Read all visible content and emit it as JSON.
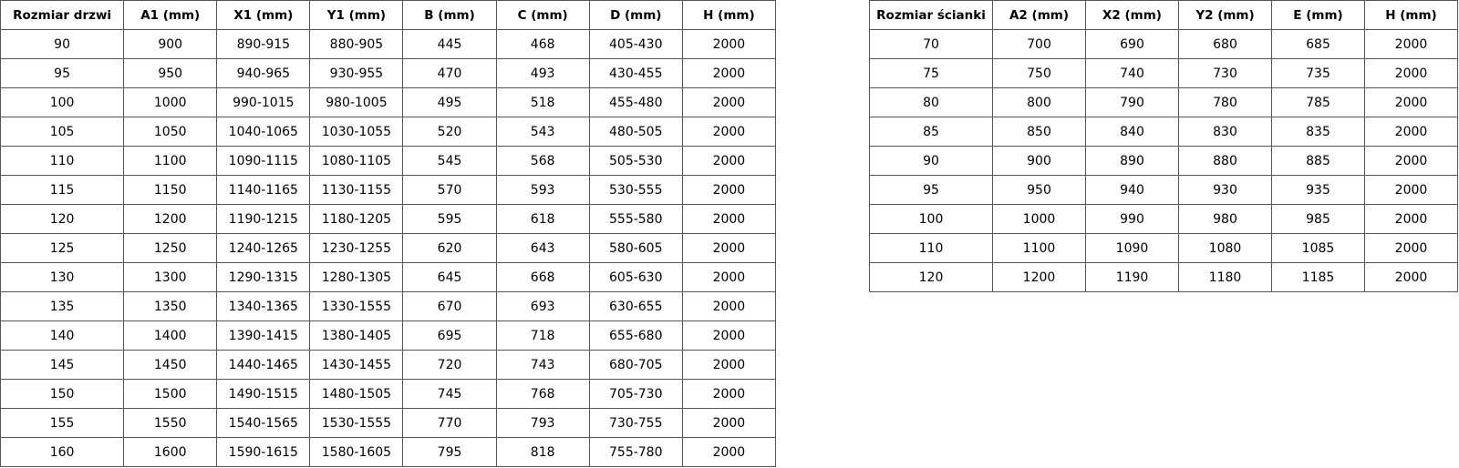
{
  "tables": [
    {
      "header": [
        "Rozmiar drzwi",
        "A1 (mm)",
        "X1 (mm)",
        "Y1 (mm)",
        "B (mm)",
        "C (mm)",
        "D (mm)",
        "H (mm)"
      ],
      "rows": [
        [
          "90",
          "900",
          "890-915",
          "880-905",
          "445",
          "468",
          "405-430",
          "2000"
        ],
        [
          "95",
          "950",
          "940-965",
          "930-955",
          "470",
          "493",
          "430-455",
          "2000"
        ],
        [
          "100",
          "1000",
          "990-1015",
          "980-1005",
          "495",
          "518",
          "455-480",
          "2000"
        ],
        [
          "105",
          "1050",
          "1040-1065",
          "1030-1055",
          "520",
          "543",
          "480-505",
          "2000"
        ],
        [
          "110",
          "1100",
          "1090-1115",
          "1080-1105",
          "545",
          "568",
          "505-530",
          "2000"
        ],
        [
          "115",
          "1150",
          "1140-1165",
          "1130-1155",
          "570",
          "593",
          "530-555",
          "2000"
        ],
        [
          "120",
          "1200",
          "1190-1215",
          "1180-1205",
          "595",
          "618",
          "555-580",
          "2000"
        ],
        [
          "125",
          "1250",
          "1240-1265",
          "1230-1255",
          "620",
          "643",
          "580-605",
          "2000"
        ],
        [
          "130",
          "1300",
          "1290-1315",
          "1280-1305",
          "645",
          "668",
          "605-630",
          "2000"
        ],
        [
          "135",
          "1350",
          "1340-1365",
          "1330-1555",
          "670",
          "693",
          "630-655",
          "2000"
        ],
        [
          "140",
          "1400",
          "1390-1415",
          "1380-1405",
          "695",
          "718",
          "655-680",
          "2000"
        ],
        [
          "145",
          "1450",
          "1440-1465",
          "1430-1455",
          "720",
          "743",
          "680-705",
          "2000"
        ],
        [
          "150",
          "1500",
          "1490-1515",
          "1480-1505",
          "745",
          "768",
          "705-730",
          "2000"
        ],
        [
          "155",
          "1550",
          "1540-1565",
          "1530-1555",
          "770",
          "793",
          "730-755",
          "2000"
        ],
        [
          "160",
          "1600",
          "1590-1615",
          "1580-1605",
          "795",
          "818",
          "755-780",
          "2000"
        ]
      ]
    },
    {
      "header": [
        "Rozmiar ścianki",
        "A2 (mm)",
        "X2 (mm)",
        "Y2 (mm)",
        "E (mm)",
        "H (mm)"
      ],
      "rows": [
        [
          "70",
          "700",
          "690",
          "680",
          "685",
          "2000"
        ],
        [
          "75",
          "750",
          "740",
          "730",
          "735",
          "2000"
        ],
        [
          "80",
          "800",
          "790",
          "780",
          "785",
          "2000"
        ],
        [
          "85",
          "850",
          "840",
          "830",
          "835",
          "2000"
        ],
        [
          "90",
          "900",
          "890",
          "880",
          "885",
          "2000"
        ],
        [
          "95",
          "950",
          "940",
          "930",
          "935",
          "2000"
        ],
        [
          "100",
          "1000",
          "990",
          "980",
          "985",
          "2000"
        ],
        [
          "110",
          "1100",
          "1090",
          "1080",
          "1085",
          "2000"
        ],
        [
          "120",
          "1200",
          "1190",
          "1180",
          "1185",
          "2000"
        ]
      ]
    }
  ]
}
